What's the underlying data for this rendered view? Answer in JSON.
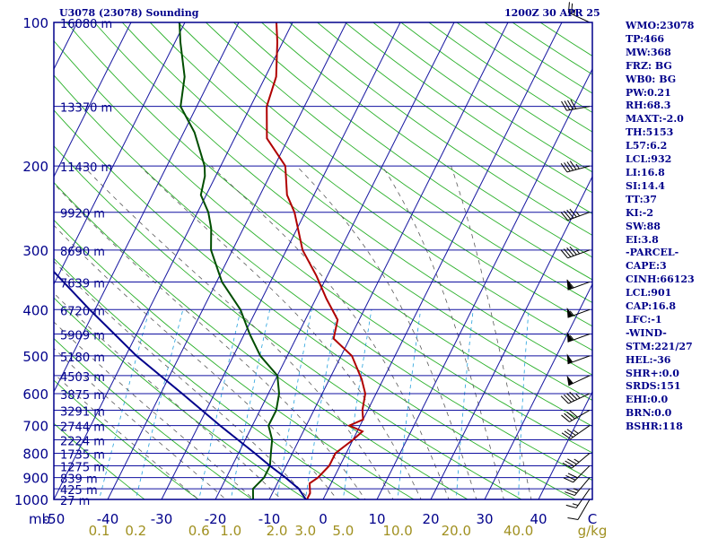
{
  "header": {
    "station": "U3078 (23078) Sounding",
    "time": "1200Z 30 APR 25"
  },
  "indices": [
    "WMO:23078",
    "TP:466",
    "MW:368",
    "FRZ: BG",
    "WB0: BG",
    "PW:0.21",
    "RH:68.3",
    "MAXT:-2.0",
    "TH:5153",
    "L57:6.2",
    "LCL:932",
    "LI:16.8",
    "SI:14.4",
    "TT:37",
    "KI:-2",
    "SW:88",
    "EI:3.8",
    "-PARCEL-",
    "CAPE:3",
    "CINH:66123",
    "LCL:901",
    "CAP:16.8",
    "LFC:-1",
    "-WIND-",
    "STM:221/27",
    "HEL:-36",
    "SHR+:0.0",
    "SRDS:151",
    "EHI:0.0",
    "BRN:0.0",
    "BSHR:118"
  ],
  "colors": {
    "frame": "#00008b",
    "isobar": "#1010a0",
    "isotherm": "#1515a0",
    "dry_adiabat": "#2ab02a",
    "moist_adiabat": "#5a5a5a",
    "mixing_ratio": "#22a0dd",
    "temperature": "#b00000",
    "dewpoint": "#004d00",
    "parcel": "#00008b",
    "text": "#00008b",
    "mr_label": "#a09020",
    "wind": "#000000"
  },
  "chart_data": {
    "type": "skew-t",
    "title": "U3078 (23078) Sounding",
    "subtitle": "1200Z 30 APR 25",
    "xlabel": "",
    "x_unit_label": "mb",
    "ylim": [
      1000,
      100
    ],
    "xlim": [
      -50,
      50
    ],
    "pressure_levels": [
      1000,
      900,
      800,
      700,
      600,
      500,
      400,
      300,
      200,
      100
    ],
    "temperature_ticks": [
      -50,
      -40,
      -30,
      -20,
      -10,
      0,
      10,
      20,
      30,
      40
    ],
    "temperature_tick_labels": [
      "-50",
      "-40",
      "-30",
      "-20",
      "-10",
      "0",
      "10",
      "20",
      "30",
      "40",
      "C"
    ],
    "mixing_ratio_ticks": [
      {
        "label": "0.1",
        "value": 0.1
      },
      {
        "label": "0.2",
        "value": 0.2
      },
      {
        "label": "0.6",
        "value": 0.6
      },
      {
        "label": "1.0",
        "value": 1.0
      },
      {
        "label": "2.0",
        "value": 2.0
      },
      {
        "label": "3.0",
        "value": 3.0
      },
      {
        "label": "5.0",
        "value": 5.0
      },
      {
        "label": "10.0",
        "value": 10.0
      },
      {
        "label": "20.0",
        "value": 20.0
      },
      {
        "label": "40.0",
        "value": 40.0
      },
      {
        "label": "g/kg",
        "value": null
      }
    ],
    "height_labels": [
      {
        "p": 100,
        "label": "16080 m"
      },
      {
        "p": 150,
        "label": "13370 m"
      },
      {
        "p": 200,
        "label": "11430 m"
      },
      {
        "p": 250,
        "label": "9920 m"
      },
      {
        "p": 300,
        "label": "8690 m"
      },
      {
        "p": 350,
        "label": "7639 m"
      },
      {
        "p": 400,
        "label": "6720 m"
      },
      {
        "p": 450,
        "label": "5909 m"
      },
      {
        "p": 500,
        "label": "5180 m"
      },
      {
        "p": 550,
        "label": "4503 m"
      },
      {
        "p": 600,
        "label": "3875 m"
      },
      {
        "p": 650,
        "label": "3291 m"
      },
      {
        "p": 700,
        "label": "2744 m"
      },
      {
        "p": 750,
        "label": "2224 m"
      },
      {
        "p": 800,
        "label": "1735 m"
      },
      {
        "p": 850,
        "label": "1275 m"
      },
      {
        "p": 900,
        "label": "839 m"
      },
      {
        "p": 950,
        "label": "425 m"
      },
      {
        "p": 1000,
        "label": "27 m"
      }
    ],
    "series": [
      {
        "values": [
          [
            1000,
            -3
          ],
          [
            970,
            -3
          ],
          [
            925,
            -4
          ],
          [
            900,
            -3
          ],
          [
            850,
            -2
          ],
          [
            800,
            -2
          ],
          [
            750,
            0
          ],
          [
            720,
            1
          ],
          [
            700,
            -2
          ],
          [
            680,
            0
          ],
          [
            650,
            -1
          ],
          [
            600,
            -2
          ],
          [
            560,
            -4
          ],
          [
            500,
            -8
          ],
          [
            460,
            -13
          ],
          [
            420,
            -14
          ],
          [
            380,
            -18
          ],
          [
            340,
            -22
          ],
          [
            300,
            -27
          ],
          [
            250,
            -32
          ],
          [
            230,
            -35
          ],
          [
            200,
            -38
          ],
          [
            175,
            -44
          ],
          [
            150,
            -47
          ],
          [
            130,
            -48
          ],
          [
            110,
            -51
          ],
          [
            100,
            -53
          ]
        ]
      },
      {
        "values": [
          [
            1000,
            -13
          ],
          [
            950,
            -14
          ],
          [
            900,
            -13
          ],
          [
            850,
            -13
          ],
          [
            800,
            -14
          ],
          [
            750,
            -15
          ],
          [
            700,
            -17
          ],
          [
            650,
            -17
          ],
          [
            600,
            -18
          ],
          [
            550,
            -20
          ],
          [
            500,
            -25
          ],
          [
            450,
            -29
          ],
          [
            400,
            -33
          ],
          [
            350,
            -39
          ],
          [
            300,
            -44
          ],
          [
            270,
            -46
          ],
          [
            250,
            -48
          ],
          [
            230,
            -51
          ],
          [
            210,
            -52
          ],
          [
            200,
            -53
          ],
          [
            170,
            -58
          ],
          [
            150,
            -63
          ],
          [
            130,
            -65
          ],
          [
            110,
            -69
          ],
          [
            100,
            -71
          ]
        ]
      },
      {
        "values": [
          [
            1000,
            -3.2
          ],
          [
            950,
            -5.5
          ],
          [
            900,
            -9
          ],
          [
            850,
            -13
          ],
          [
            800,
            -17
          ],
          [
            700,
            -26
          ],
          [
            600,
            -36
          ],
          [
            500,
            -48
          ],
          [
            400,
            -61
          ],
          [
            300,
            -77
          ],
          [
            250,
            -86
          ],
          [
            200,
            -96
          ],
          [
            150,
            -103
          ],
          [
            130,
            -107
          ]
        ]
      }
    ],
    "wind_barbs": [
      {
        "p": 100,
        "dir": 295,
        "spd": 25
      },
      {
        "p": 150,
        "dir": 260,
        "spd": 40
      },
      {
        "p": 200,
        "dir": 255,
        "spd": 45
      },
      {
        "p": 250,
        "dir": 250,
        "spd": 45
      },
      {
        "p": 300,
        "dir": 250,
        "spd": 45
      },
      {
        "p": 350,
        "dir": 250,
        "spd": 60
      },
      {
        "p": 400,
        "dir": 250,
        "spd": 55
      },
      {
        "p": 450,
        "dir": 250,
        "spd": 55
      },
      {
        "p": 500,
        "dir": 250,
        "spd": 50
      },
      {
        "p": 550,
        "dir": 245,
        "spd": 50
      },
      {
        "p": 600,
        "dir": 245,
        "spd": 45
      },
      {
        "p": 650,
        "dir": 240,
        "spd": 40
      },
      {
        "p": 700,
        "dir": 235,
        "spd": 35
      },
      {
        "p": 800,
        "dir": 230,
        "spd": 35
      },
      {
        "p": 850,
        "dir": 225,
        "spd": 30
      },
      {
        "p": 900,
        "dir": 220,
        "spd": 25
      },
      {
        "p": 950,
        "dir": 215,
        "spd": 15
      },
      {
        "p": 1000,
        "dir": 210,
        "spd": 10
      }
    ],
    "grid": true,
    "legend": "right-panel"
  }
}
